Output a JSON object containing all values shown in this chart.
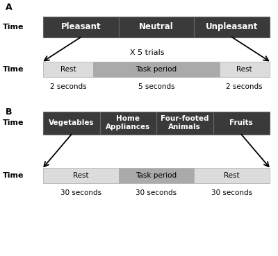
{
  "panel_A_label": "A",
  "panel_B_label": "B",
  "dark_color": "#3a3a3a",
  "light_rest_color": "#dcdcdc",
  "mid_task_color": "#aaaaaa",
  "white": "#ffffff",
  "time_label": "Time",
  "panel_A": {
    "top_segments": [
      "Pleasant",
      "Neutral",
      "Unpleasant"
    ],
    "x_trials_label": "X 5 trials",
    "bottom_segments": [
      "Rest",
      "Task period",
      "Rest"
    ],
    "bottom_durations": [
      "2 seconds",
      "5 seconds",
      "2 seconds"
    ],
    "props": [
      0.2222,
      0.5556,
      0.2222
    ]
  },
  "panel_B": {
    "top_segments": [
      "Vegetables",
      "Home\nAppliances",
      "Four-footed\nAnimals",
      "Fruits"
    ],
    "bottom_segments": [
      "Rest",
      "Task period",
      "Rest"
    ],
    "bottom_durations": [
      "30 seconds",
      "30 seconds",
      "30 seconds"
    ],
    "props": [
      0.3333,
      0.3333,
      0.3333
    ]
  },
  "background_color": "#ffffff",
  "fig_width": 4.0,
  "fig_height": 3.69
}
